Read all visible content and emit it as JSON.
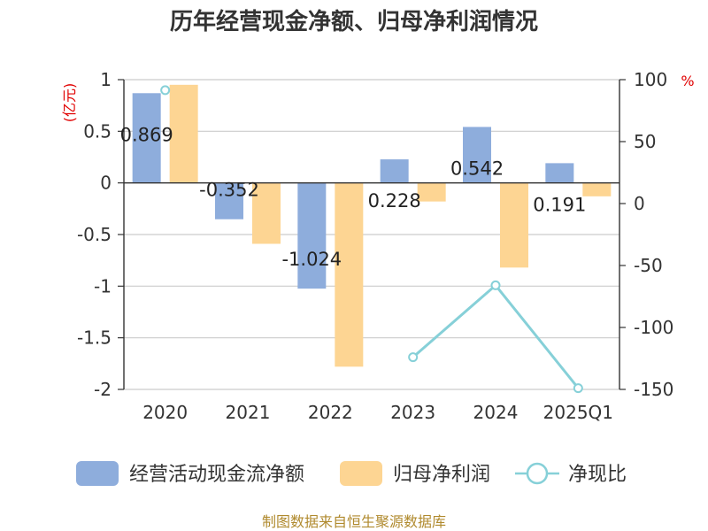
{
  "chart_data": {
    "type": "bar",
    "title": "历年经营现金净额、归母净利润情况",
    "categories": [
      "2020",
      "2021",
      "2022",
      "2023",
      "2024",
      "2025Q1"
    ],
    "left_axis": {
      "unit": "(亿元)",
      "ylim": [
        -2,
        1
      ],
      "ticks": [
        "1",
        "0.5",
        "0",
        "-0.5",
        "-1",
        "-1.5",
        "-2"
      ],
      "tick_values": [
        1,
        0.5,
        0,
        -0.5,
        -1,
        -1.5,
        -2
      ]
    },
    "right_axis": {
      "unit": "%",
      "ylim": [
        -150,
        100
      ],
      "ticks": [
        "100",
        "50",
        "0",
        "-50",
        "-100",
        "-150"
      ],
      "tick_values": [
        100,
        50,
        0,
        -50,
        -100,
        -150
      ]
    },
    "series": [
      {
        "name": "经营活动现金流净额",
        "kind": "bar",
        "axis": "left",
        "color": "#8eaddc",
        "values": [
          0.869,
          -0.352,
          -1.024,
          0.228,
          0.542,
          0.191
        ],
        "labels": [
          "0.869",
          "-0.352",
          "-1.024",
          "0.228",
          "0.542",
          "0.191"
        ]
      },
      {
        "name": "归母净利润",
        "kind": "bar",
        "axis": "left",
        "color": "#fdd593",
        "values": [
          0.95,
          -0.59,
          -1.78,
          -0.18,
          -0.82,
          -0.13
        ]
      },
      {
        "name": "净现比",
        "kind": "line",
        "axis": "right",
        "color": "#86d0d8",
        "values": [
          91.5,
          null,
          null,
          -124,
          -66,
          -149
        ]
      }
    ],
    "grid": true,
    "legend_position": "bottom"
  },
  "source": "制图数据来自恒生聚源数据库"
}
